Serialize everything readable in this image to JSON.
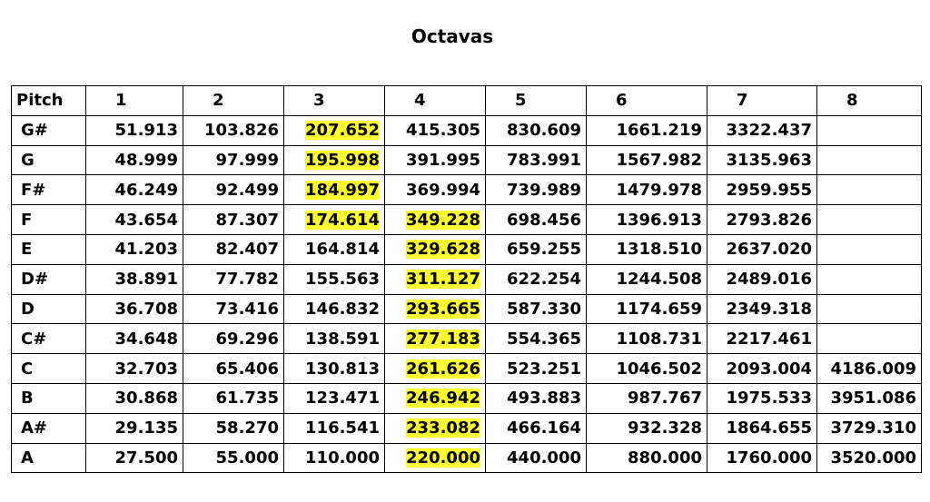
{
  "title": "Octavas",
  "highlight_color": "#ffff33",
  "table": {
    "headers": [
      "Pitch",
      "1",
      "2",
      "3",
      "4",
      "5",
      "6",
      "7",
      "8"
    ],
    "rows": [
      {
        "pitch": "G#",
        "values": [
          "51.913",
          "103.826",
          "207.652",
          "415.305",
          "830.609",
          "1661.219",
          "3322.437",
          ""
        ],
        "highlight": [
          false,
          false,
          true,
          false,
          false,
          false,
          false,
          false
        ]
      },
      {
        "pitch": "G",
        "values": [
          "48.999",
          "97.999",
          "195.998",
          "391.995",
          "783.991",
          "1567.982",
          "3135.963",
          ""
        ],
        "highlight": [
          false,
          false,
          true,
          false,
          false,
          false,
          false,
          false
        ]
      },
      {
        "pitch": "F#",
        "values": [
          "46.249",
          "92.499",
          "184.997",
          "369.994",
          "739.989",
          "1479.978",
          "2959.955",
          ""
        ],
        "highlight": [
          false,
          false,
          true,
          false,
          false,
          false,
          false,
          false
        ]
      },
      {
        "pitch": "F",
        "values": [
          "43.654",
          "87.307",
          "174.614",
          "349.228",
          "698.456",
          "1396.913",
          "2793.826",
          ""
        ],
        "highlight": [
          false,
          false,
          true,
          true,
          false,
          false,
          false,
          false
        ]
      },
      {
        "pitch": "E",
        "values": [
          "41.203",
          "82.407",
          "164.814",
          "329.628",
          "659.255",
          "1318.510",
          "2637.020",
          ""
        ],
        "highlight": [
          false,
          false,
          false,
          true,
          false,
          false,
          false,
          false
        ]
      },
      {
        "pitch": "D#",
        "values": [
          "38.891",
          "77.782",
          "155.563",
          "311.127",
          "622.254",
          "1244.508",
          "2489.016",
          ""
        ],
        "highlight": [
          false,
          false,
          false,
          true,
          false,
          false,
          false,
          false
        ]
      },
      {
        "pitch": "D",
        "values": [
          "36.708",
          "73.416",
          "146.832",
          "293.665",
          "587.330",
          "1174.659",
          "2349.318",
          ""
        ],
        "highlight": [
          false,
          false,
          false,
          true,
          false,
          false,
          false,
          false
        ]
      },
      {
        "pitch": "C#",
        "values": [
          "34.648",
          "69.296",
          "138.591",
          "277.183",
          "554.365",
          "1108.731",
          "2217.461",
          ""
        ],
        "highlight": [
          false,
          false,
          false,
          true,
          false,
          false,
          false,
          false
        ]
      },
      {
        "pitch": "C",
        "values": [
          "32.703",
          "65.406",
          "130.813",
          "261.626",
          "523.251",
          "1046.502",
          "2093.004",
          "4186.009"
        ],
        "highlight": [
          false,
          false,
          false,
          true,
          false,
          false,
          false,
          false
        ]
      },
      {
        "pitch": "B",
        "values": [
          "30.868",
          "61.735",
          "123.471",
          "246.942",
          "493.883",
          "987.767",
          "1975.533",
          "3951.086"
        ],
        "highlight": [
          false,
          false,
          false,
          true,
          false,
          false,
          false,
          false
        ]
      },
      {
        "pitch": "A#",
        "values": [
          "29.135",
          "58.270",
          "116.541",
          "233.082",
          "466.164",
          "932.328",
          "1864.655",
          "3729.310"
        ],
        "highlight": [
          false,
          false,
          false,
          true,
          false,
          false,
          false,
          false
        ]
      },
      {
        "pitch": "A",
        "values": [
          "27.500",
          "55.000",
          "110.000",
          "220.000",
          "440.000",
          "880.000",
          "1760.000",
          "3520.000"
        ],
        "highlight": [
          false,
          false,
          false,
          true,
          false,
          false,
          false,
          false
        ]
      }
    ]
  }
}
